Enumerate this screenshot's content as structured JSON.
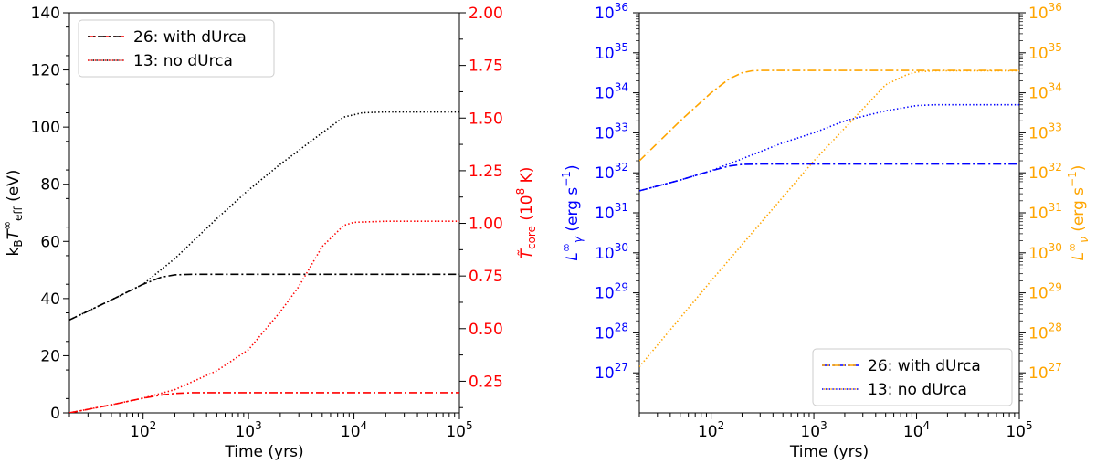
{
  "chart_data": [
    {
      "type": "line",
      "panel": "left",
      "xlabel": "Time (yrs)",
      "xscale": "log",
      "xlim": [
        20,
        100000
      ],
      "ylabel_left": "k_B T_eff^∞ (eV)",
      "ylim_left": [
        0,
        140
      ],
      "yticks_left": [
        "0",
        "20",
        "40",
        "60",
        "80",
        "100",
        "120",
        "140"
      ],
      "ylabel_right": "T̃_core (10^8 K)",
      "ylim_right": [
        0.1,
        2.0
      ],
      "yticks_right": [
        "0.25",
        "0.50",
        "0.75",
        "1.00",
        "1.25",
        "1.50",
        "1.75",
        "2.00"
      ],
      "xtick_labels": [
        {
          "base": "10",
          "exp": "2"
        },
        {
          "base": "10",
          "exp": "3"
        },
        {
          "base": "10",
          "exp": "4"
        },
        {
          "base": "10",
          "exp": "5"
        }
      ],
      "colors": {
        "left_axis": "#000000",
        "right_axis": "#ff0000"
      },
      "legend": {
        "position": "top-left",
        "entries": [
          {
            "label": "26: with dUrca",
            "style": "dashdot"
          },
          {
            "label": "13: no dUrca",
            "style": "dotted"
          }
        ]
      },
      "series": [
        {
          "name": "Teff 26: with dUrca",
          "axis": "left",
          "color": "#000000",
          "style": "dashdot",
          "x": [
            20,
            50,
            100,
            150,
            200,
            300,
            1000,
            100000
          ],
          "y": [
            32.5,
            39.5,
            45,
            47.5,
            48.3,
            48.5,
            48.5,
            48.5
          ]
        },
        {
          "name": "Teff 13: no dUrca",
          "axis": "left",
          "color": "#000000",
          "style": "dotted",
          "x": [
            20,
            50,
            100,
            200,
            500,
            1000,
            2000,
            5000,
            8000,
            12000,
            20000,
            100000
          ],
          "y": [
            32.5,
            39.5,
            45,
            54,
            68,
            78,
            87,
            98,
            103.5,
            105,
            105.3,
            105.3
          ]
        },
        {
          "name": "Tcore 26: with dUrca",
          "axis": "right",
          "color": "#ff0000",
          "style": "dashdot",
          "x": [
            20,
            50,
            100,
            150,
            200,
            300,
            1000,
            100000
          ],
          "y": [
            0.1,
            0.138,
            0.17,
            0.185,
            0.192,
            0.196,
            0.196,
            0.196
          ]
        },
        {
          "name": "Tcore 13: no dUrca",
          "axis": "right",
          "color": "#ff0000",
          "style": "dotted",
          "x": [
            20,
            50,
            100,
            200,
            500,
            1000,
            2000,
            3000,
            5000,
            8000,
            10000,
            20000,
            100000
          ],
          "y": [
            0.1,
            0.138,
            0.17,
            0.21,
            0.3,
            0.4,
            0.58,
            0.7,
            0.89,
            0.99,
            1.005,
            1.01,
            1.01
          ]
        }
      ]
    },
    {
      "type": "line",
      "panel": "right",
      "xlabel": "Time (yrs)",
      "xscale": "log",
      "xlim": [
        20,
        100000
      ],
      "ylabel_left": "L_γ^∞ (erg s^-1)",
      "ylim_left_log10": [
        26,
        36
      ],
      "ylabel_right": "L_ν^∞ (erg s^-1)",
      "ylim_right_log10": [
        26,
        36
      ],
      "yticks": [
        {
          "base": "10",
          "exp": "27",
          "value": 27
        },
        {
          "base": "10",
          "exp": "28",
          "value": 28
        },
        {
          "base": "10",
          "exp": "29",
          "value": 29
        },
        {
          "base": "10",
          "exp": "30",
          "value": 30
        },
        {
          "base": "10",
          "exp": "31",
          "value": 31
        },
        {
          "base": "10",
          "exp": "32",
          "value": 32
        },
        {
          "base": "10",
          "exp": "33",
          "value": 33
        },
        {
          "base": "10",
          "exp": "34",
          "value": 34
        },
        {
          "base": "10",
          "exp": "35",
          "value": 35
        },
        {
          "base": "10",
          "exp": "36",
          "value": 36
        }
      ],
      "xtick_labels": [
        {
          "base": "10",
          "exp": "2"
        },
        {
          "base": "10",
          "exp": "3"
        },
        {
          "base": "10",
          "exp": "4"
        },
        {
          "base": "10",
          "exp": "5"
        }
      ],
      "colors": {
        "left_axis": "#0000ff",
        "right_axis": "#ffa500"
      },
      "legend": {
        "position": "bottom-right",
        "entries": [
          {
            "label": "26: with dUrca",
            "style": "dashdot"
          },
          {
            "label": "13: no dUrca",
            "style": "dotted"
          }
        ]
      },
      "series": [
        {
          "name": "L_gamma 26: with dUrca",
          "axis": "left",
          "color": "#0000ff",
          "style": "dashdot",
          "x": [
            20,
            50,
            100,
            150,
            200,
            300,
            1000,
            100000
          ],
          "log10y": [
            31.55,
            31.82,
            32.05,
            32.17,
            32.21,
            32.22,
            32.22,
            32.22
          ]
        },
        {
          "name": "L_gamma 13: no dUrca",
          "axis": "left",
          "color": "#0000ff",
          "style": "dotted",
          "x": [
            20,
            50,
            100,
            200,
            500,
            1000,
            2000,
            5000,
            10000,
            15000,
            100000
          ],
          "log10y": [
            31.55,
            31.82,
            32.05,
            32.35,
            32.75,
            33.0,
            33.3,
            33.55,
            33.68,
            33.7,
            33.7
          ]
        },
        {
          "name": "L_nu 26: with dUrca",
          "axis": "right",
          "color": "#ffa500",
          "style": "dashdot",
          "x": [
            20,
            50,
            100,
            150,
            200,
            250,
            300,
            1000,
            100000
          ],
          "log10y": [
            32.3,
            33.3,
            34.0,
            34.35,
            34.5,
            34.55,
            34.56,
            34.56,
            34.56
          ]
        },
        {
          "name": "L_nu 13: no dUrca",
          "axis": "right",
          "color": "#ffa500",
          "style": "dotted",
          "x": [
            20,
            100,
            1000,
            5000,
            8000,
            10000,
            15000,
            100000
          ],
          "log10y": [
            27.15,
            29.3,
            32.3,
            34.2,
            34.45,
            34.52,
            34.55,
            34.55
          ]
        }
      ]
    }
  ]
}
